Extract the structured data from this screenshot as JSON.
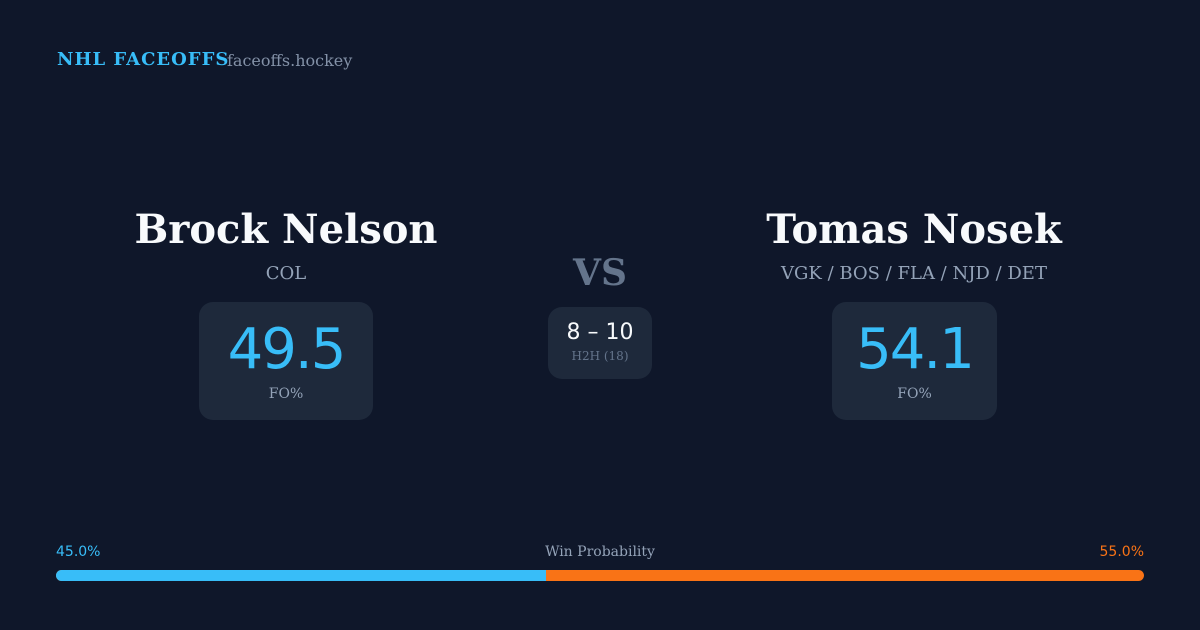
{
  "header": {
    "brand": "NHL FACEOFFS",
    "domain": "faceoffs.hockey"
  },
  "player1": {
    "name": "Brock Nelson",
    "team": "COL",
    "fo_pct": "49.5",
    "fo_label": "FO%"
  },
  "player2": {
    "name": "Tomas Nosek",
    "team": "VGK / BOS / FLA / NJD / DET",
    "fo_pct": "54.1",
    "fo_label": "FO%"
  },
  "vs": "VS",
  "h2h": {
    "score": "8 – 10",
    "label": "H2H (18)"
  },
  "win_probability": {
    "label": "Win Probability",
    "left": "45.0%",
    "right": "55.0%",
    "left_value": 45.0,
    "left_color": "#38bdf8",
    "right_color": "#f97316"
  }
}
